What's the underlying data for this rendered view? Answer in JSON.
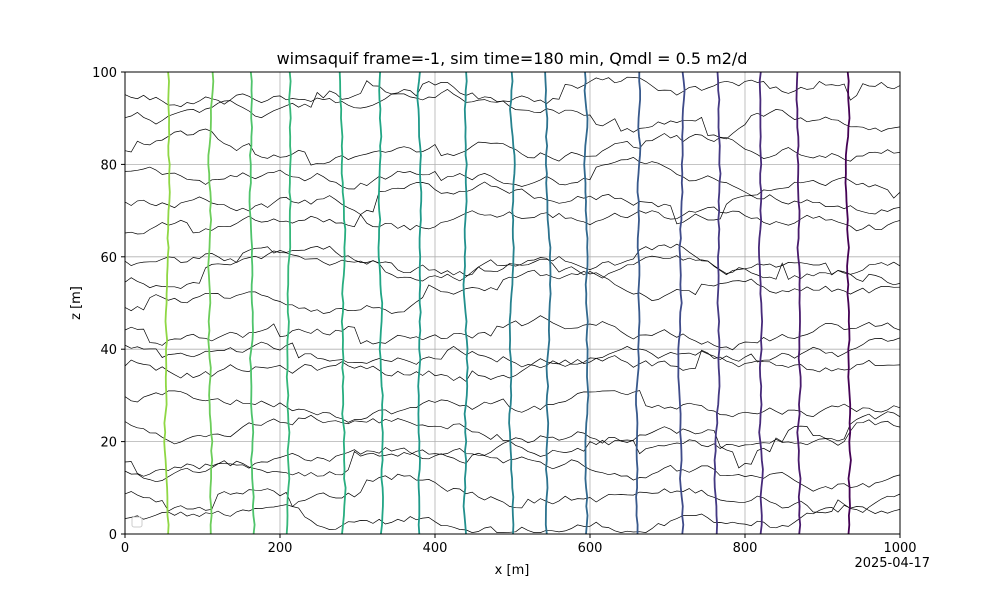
{
  "chart_data": {
    "type": "line",
    "title": "wimsaquif frame=-1, sim time=180 min, Qmdl = 0.5 m2/d",
    "xlabel": "x [m]",
    "ylabel": "z [m]",
    "xlim": [
      0,
      1000
    ],
    "ylim": [
      0,
      100
    ],
    "xticks": [
      0,
      200,
      400,
      600,
      800,
      1000
    ],
    "yticks": [
      0,
      20,
      40,
      60,
      80,
      100
    ],
    "xtick_labels": [
      "0",
      "200",
      "400",
      "600",
      "800",
      "1000"
    ],
    "ytick_labels": [
      "0",
      "20",
      "40",
      "60",
      "80",
      "100"
    ],
    "grid": true,
    "legend": "lower-left (empty)",
    "footer_date": "2025-04-17",
    "head_contours": {
      "description_colormap": "viridis, light green (left) to dark purple (right)",
      "x_positions": [
        55,
        110,
        165,
        210,
        280,
        330,
        380,
        440,
        500,
        545,
        595,
        660,
        720,
        765,
        820,
        870,
        935
      ],
      "colors": [
        "#8fd744",
        "#6ccd5a",
        "#4ec36b",
        "#35b779",
        "#28ae80",
        "#21a585",
        "#1f9a8a",
        "#22908d",
        "#26828e",
        "#2c728e",
        "#31688e",
        "#38598c",
        "#3e4a89",
        "#443983",
        "#472a7a",
        "#481a6c",
        "#440154"
      ]
    },
    "streamlines": {
      "color": "#000000",
      "z_starts": [
        3,
        8,
        14,
        19,
        24,
        29,
        35,
        40,
        45,
        50,
        55,
        60,
        66,
        72,
        78,
        84,
        90,
        95
      ]
    }
  }
}
